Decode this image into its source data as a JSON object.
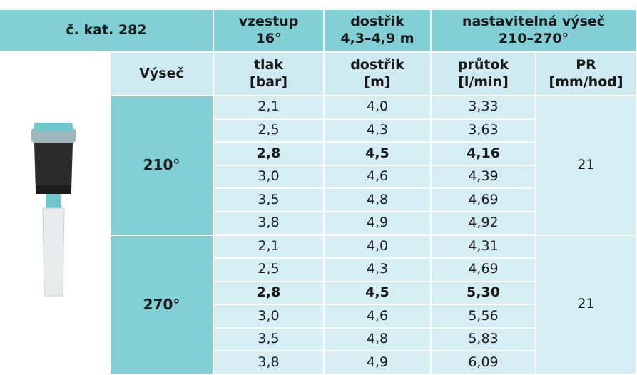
{
  "header_row_1": [
    "č. kat. 282",
    "vzestup\n16°",
    "dostřik\n4,3–4,9 m",
    "nastavitelná výseč\n210–270°"
  ],
  "header_row_2": [
    "Výseč",
    "tlak\n[bar]",
    "dostřik\n[m]",
    "průtok\n[l/min]",
    "PR\n[mm/hod]"
  ],
  "groups": [
    {
      "sector": "210°",
      "pr": "21",
      "rows": [
        [
          "2,1",
          "4,0",
          "3,33"
        ],
        [
          "2,5",
          "4,3",
          "3,63"
        ],
        [
          "2,8",
          "4,5",
          "4,16"
        ],
        [
          "3,0",
          "4,6",
          "4,39"
        ],
        [
          "3,5",
          "4,8",
          "4,69"
        ],
        [
          "3,8",
          "4,9",
          "4,92"
        ]
      ]
    },
    {
      "sector": "270°",
      "pr": "21",
      "rows": [
        [
          "2,1",
          "4,0",
          "4,31"
        ],
        [
          "2,5",
          "4,3",
          "4,69"
        ],
        [
          "2,8",
          "4,5",
          "5,30"
        ],
        [
          "3,0",
          "4,6",
          "5,56"
        ],
        [
          "3,5",
          "4,8",
          "5,83"
        ],
        [
          "3,8",
          "4,9",
          "6,09"
        ]
      ]
    }
  ]
}
